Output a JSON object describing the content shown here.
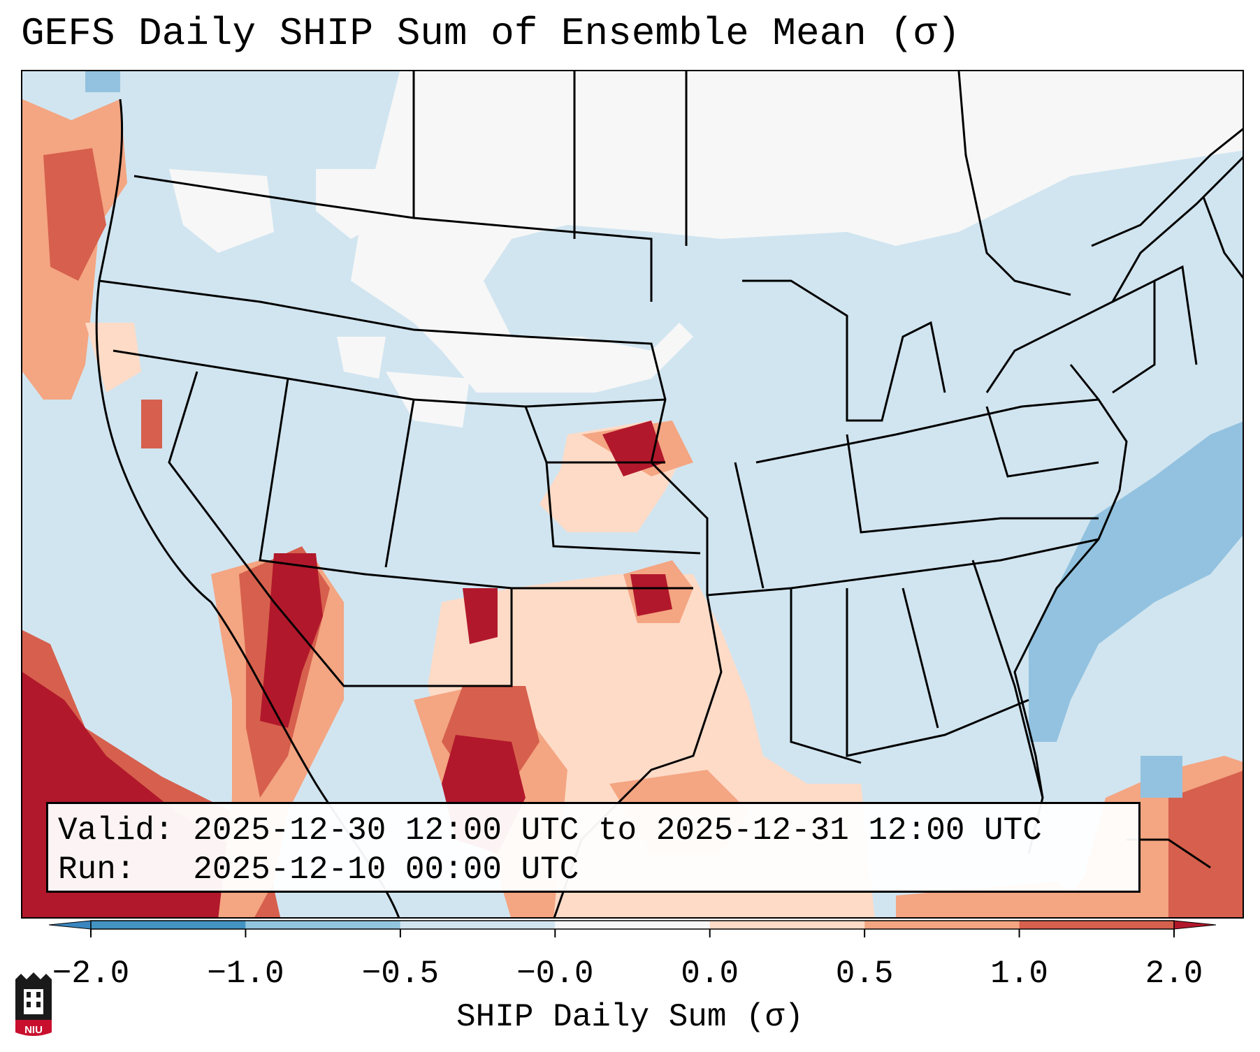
{
  "title": "GEFS Daily SHIP Sum of Ensemble Mean (σ)",
  "info": {
    "valid_label": "Valid:",
    "valid_value": "2025-12-30 12:00 UTC to 2025-12-31 12:00 UTC",
    "run_label": "Run:",
    "run_value": "2025-12-10 00:00 UTC"
  },
  "colorbar": {
    "label": "SHIP Daily Sum (σ)",
    "ticks": [
      "−2.0",
      "−1.0",
      "−0.5",
      "−0.0",
      "0.0",
      "0.5",
      "1.0",
      "2.0"
    ],
    "colors": [
      "#3a86c0",
      "#92c2df",
      "#d1e5f0",
      "#f7f7f7",
      "#fddbc7",
      "#f4a582",
      "#d6604d",
      "#b2182b"
    ],
    "extend": "both"
  },
  "logo": {
    "text": "NIU",
    "colors": {
      "body": "#1a1a1a",
      "band": "#c8102e"
    }
  },
  "map": {
    "region": "Contiguous United States",
    "background_color": "#d1e5f0",
    "boundary_color": "#000000"
  }
}
